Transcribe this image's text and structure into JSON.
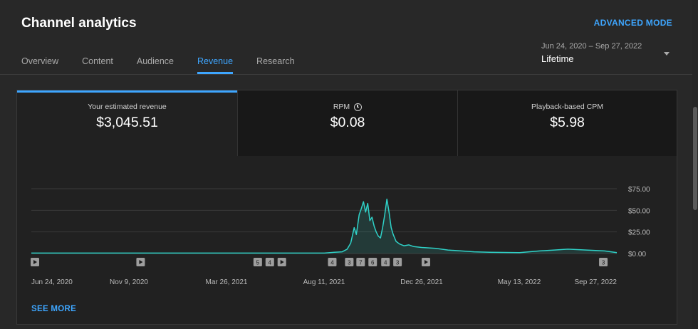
{
  "header": {
    "title": "Channel analytics",
    "advanced_label": "ADVANCED MODE"
  },
  "tabs": [
    {
      "label": "Overview"
    },
    {
      "label": "Content"
    },
    {
      "label": "Audience"
    },
    {
      "label": "Revenue"
    },
    {
      "label": "Research"
    }
  ],
  "active_tab": "Revenue",
  "date_range": {
    "range": "Jun 24, 2020 – Sep 27, 2022",
    "preset": "Lifetime"
  },
  "metrics": [
    {
      "label": "Your estimated revenue",
      "value": "$3,045.51",
      "icon": ""
    },
    {
      "label": "RPM",
      "value": "$0.08",
      "icon": "clock-icon"
    },
    {
      "label": "Playback-based CPM",
      "value": "$5.98",
      "icon": ""
    }
  ],
  "colors": {
    "accent": "#3ea6ff",
    "line": "#2fd2c8",
    "background": "#282828"
  },
  "see_more_label": "SEE MORE",
  "chart_data": {
    "type": "line",
    "series": [
      {
        "name": "",
        "unit": "USD",
        "points": [
          [
            "2020-06-24",
            0.5
          ],
          [
            "2020-09-01",
            0.5
          ],
          [
            "2020-11-09",
            0.5
          ],
          [
            "2021-01-15",
            0.5
          ],
          [
            "2021-03-26",
            0.5
          ],
          [
            "2021-06-01",
            0.5
          ],
          [
            "2021-08-11",
            0.5
          ],
          [
            "2021-08-25",
            1.5
          ],
          [
            "2021-09-05",
            2
          ],
          [
            "2021-09-12",
            5
          ],
          [
            "2021-09-17",
            12
          ],
          [
            "2021-09-22",
            30
          ],
          [
            "2021-09-25",
            22
          ],
          [
            "2021-09-29",
            45
          ],
          [
            "2021-10-02",
            52
          ],
          [
            "2021-10-05",
            60
          ],
          [
            "2021-10-08",
            48
          ],
          [
            "2021-10-11",
            58
          ],
          [
            "2021-10-14",
            38
          ],
          [
            "2021-10-17",
            42
          ],
          [
            "2021-10-20",
            32
          ],
          [
            "2021-10-23",
            25
          ],
          [
            "2021-10-26",
            20
          ],
          [
            "2021-10-29",
            18
          ],
          [
            "2021-11-01",
            30
          ],
          [
            "2021-11-04",
            45
          ],
          [
            "2021-11-07",
            63
          ],
          [
            "2021-11-10",
            48
          ],
          [
            "2021-11-13",
            30
          ],
          [
            "2021-11-16",
            22
          ],
          [
            "2021-11-20",
            14
          ],
          [
            "2021-11-25",
            11
          ],
          [
            "2021-12-01",
            9
          ],
          [
            "2021-12-08",
            10
          ],
          [
            "2021-12-15",
            8
          ],
          [
            "2021-12-26",
            7
          ],
          [
            "2022-01-15",
            6
          ],
          [
            "2022-02-01",
            4
          ],
          [
            "2022-02-20",
            3
          ],
          [
            "2022-03-10",
            2
          ],
          [
            "2022-04-01",
            1.5
          ],
          [
            "2022-05-13",
            1
          ],
          [
            "2022-06-10",
            3
          ],
          [
            "2022-07-01",
            4
          ],
          [
            "2022-07-20",
            5
          ],
          [
            "2022-08-15",
            4
          ],
          [
            "2022-09-10",
            3
          ],
          [
            "2022-09-27",
            1
          ]
        ]
      }
    ],
    "x_ticks": [
      "Jun 24, 2020",
      "Nov 9, 2020",
      "Mar 26, 2021",
      "Aug 11, 2021",
      "Dec 26, 2021",
      "May 13, 2022",
      "Sep 27, 2022"
    ],
    "y_ticks": [
      "$75.00",
      "$50.00",
      "$25.00",
      "$0.00"
    ],
    "ylim": [
      0,
      75
    ],
    "grid": true,
    "timeline_markers": [
      {
        "date": "2020-06-24",
        "label": "play"
      },
      {
        "date": "2020-11-25",
        "label": "play"
      },
      {
        "date": "2021-05-09",
        "label": "5"
      },
      {
        "date": "2021-05-26",
        "label": "4"
      },
      {
        "date": "2021-06-12",
        "label": "play"
      },
      {
        "date": "2021-08-22",
        "label": "4"
      },
      {
        "date": "2021-09-15",
        "label": "3"
      },
      {
        "date": "2021-10-01",
        "label": "7"
      },
      {
        "date": "2021-10-18",
        "label": "6"
      },
      {
        "date": "2021-11-05",
        "label": "4"
      },
      {
        "date": "2021-11-22",
        "label": "3"
      },
      {
        "date": "2022-01-01",
        "label": "play"
      },
      {
        "date": "2022-09-08",
        "label": "3"
      }
    ]
  }
}
